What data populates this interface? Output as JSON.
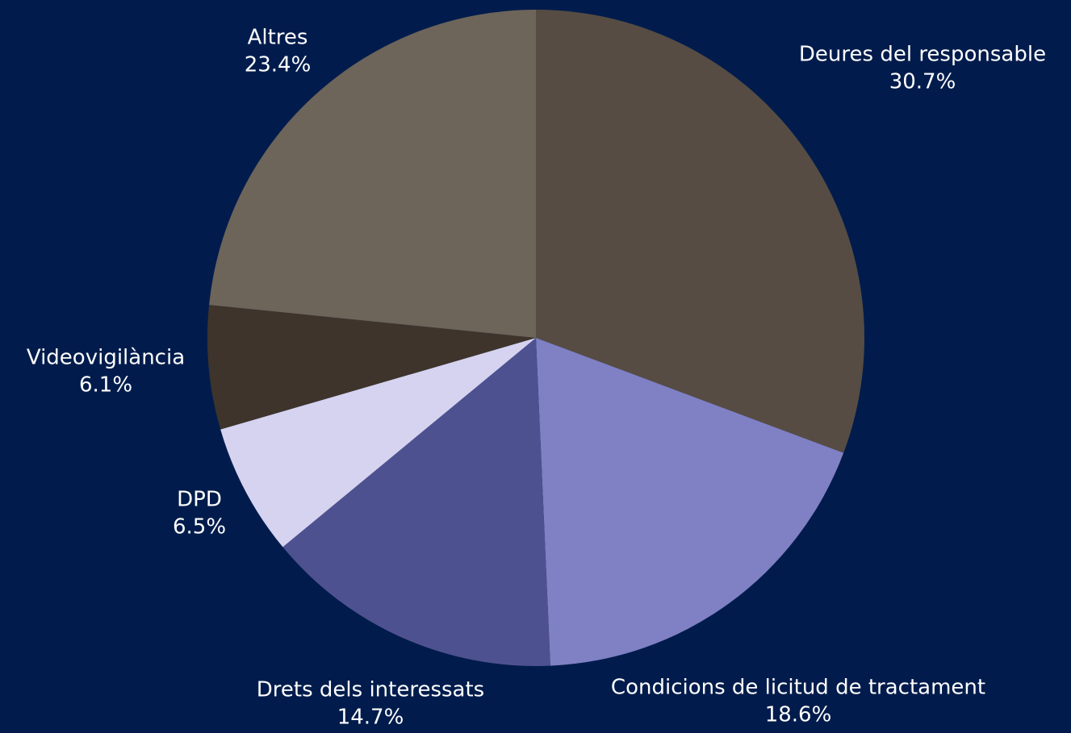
{
  "chart_data": {
    "type": "pie",
    "categories": [
      "Deures del responsable",
      "Condicions de licitud de tractament",
      "Drets dels interessats",
      "DPD",
      "Videovigilància",
      "Altres"
    ],
    "values": [
      30.7,
      18.6,
      14.7,
      6.5,
      6.1,
      23.4
    ],
    "value_labels": [
      "30.7%",
      "18.6%",
      "14.7%",
      "6.5%",
      "6.1%",
      "23.4%"
    ],
    "colors": [
      "#564c43",
      "#8080c4",
      "#4e5190",
      "#d6d3f0",
      "#3e342b",
      "#6d645a"
    ]
  }
}
